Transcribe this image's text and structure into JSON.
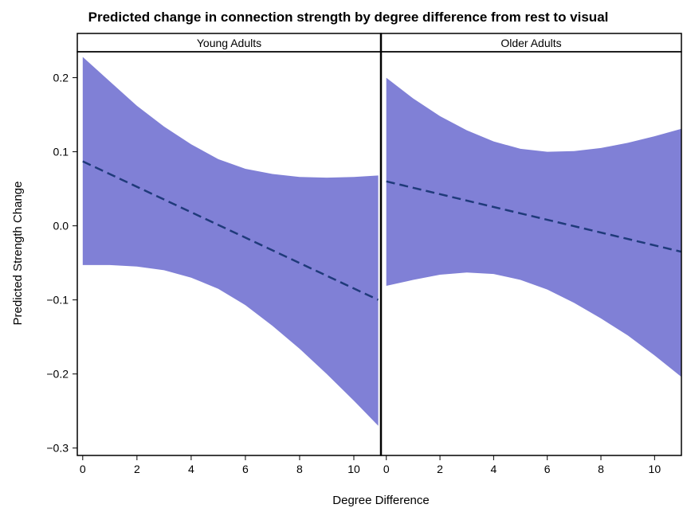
{
  "chart_data": {
    "type": "area",
    "title": "Predicted change in connection strength by degree difference from rest to visual",
    "xlabel": "Degree Difference",
    "ylabel": "Predicted Strength Change",
    "xlim": [
      -0.2,
      11
    ],
    "ylim": [
      -0.31,
      0.235
    ],
    "x_ticks": [
      0,
      2,
      4,
      6,
      8,
      10
    ],
    "y_ticks": [
      -0.3,
      -0.2,
      -0.1,
      0.0,
      0.1,
      0.2
    ],
    "y_tick_labels": [
      "−0.3",
      "−0.2",
      "−0.1",
      "0.0",
      "0.1",
      "0.2"
    ],
    "grid": false,
    "band_color": "#8080d6",
    "line_color": "#1f3a7a",
    "panels": [
      {
        "strip_label": "Young Adults",
        "x": [
          0,
          1,
          2,
          3,
          4,
          5,
          6,
          7,
          8,
          9,
          10,
          10.9
        ],
        "upper": [
          0.228,
          0.195,
          0.162,
          0.134,
          0.11,
          0.09,
          0.077,
          0.07,
          0.066,
          0.065,
          0.066,
          0.068
        ],
        "lower": [
          -0.053,
          -0.053,
          -0.055,
          -0.06,
          -0.07,
          -0.085,
          -0.107,
          -0.135,
          -0.166,
          -0.2,
          -0.236,
          -0.27
        ],
        "fit_line": [
          [
            0,
            0.087
          ],
          [
            10.9,
            -0.1
          ]
        ]
      },
      {
        "strip_label": "Older Adults",
        "x": [
          0,
          1,
          2,
          3,
          4,
          5,
          6,
          7,
          8,
          9,
          10,
          11
        ],
        "upper": [
          0.2,
          0.172,
          0.148,
          0.129,
          0.114,
          0.104,
          0.1,
          0.101,
          0.105,
          0.112,
          0.121,
          0.131
        ],
        "lower": [
          -0.081,
          -0.073,
          -0.066,
          -0.063,
          -0.065,
          -0.073,
          -0.086,
          -0.104,
          -0.125,
          -0.148,
          -0.175,
          -0.204
        ],
        "fit_line": [
          [
            0,
            0.06
          ],
          [
            11,
            -0.035
          ]
        ]
      }
    ]
  }
}
